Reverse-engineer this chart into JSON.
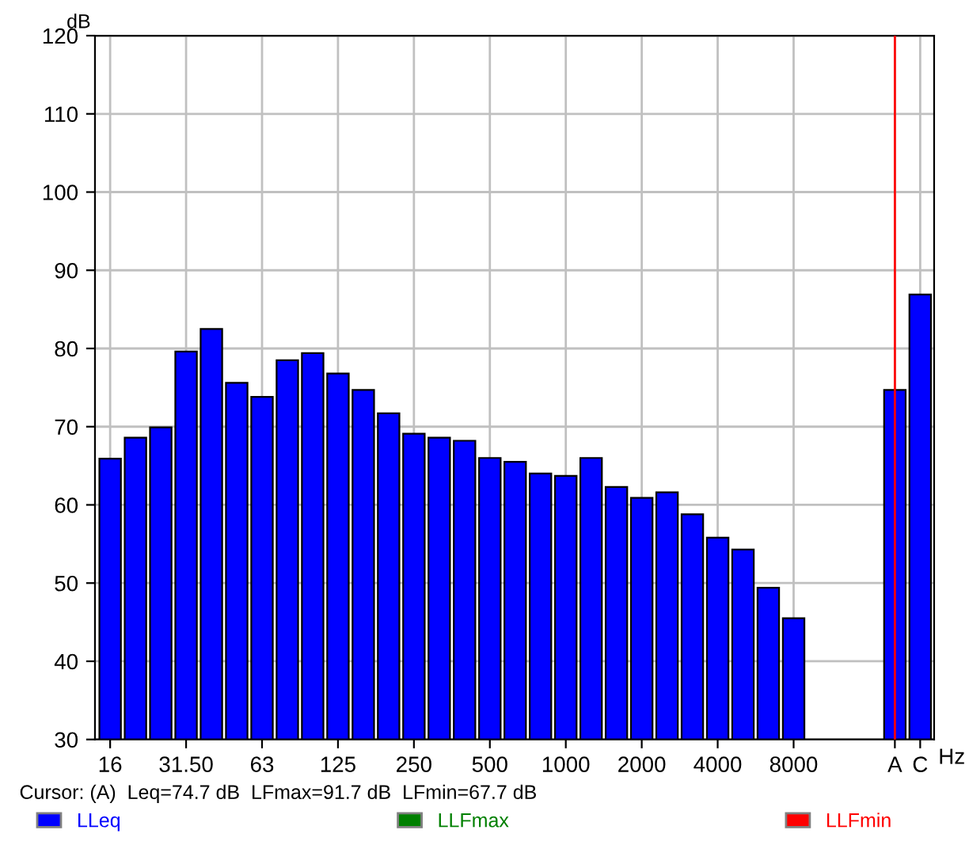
{
  "chart_data": {
    "type": "bar",
    "categories": [
      "16",
      null,
      null,
      "31.50",
      null,
      null,
      "63",
      null,
      null,
      "125",
      null,
      null,
      "250",
      null,
      null,
      "500",
      null,
      null,
      "1000",
      null,
      null,
      "2000",
      null,
      null,
      "4000",
      null,
      null,
      "8000",
      null,
      null,
      null,
      "A",
      "C"
    ],
    "series": [
      {
        "name": "LLeq",
        "color": "#0000ff",
        "values": [
          65.9,
          68.6,
          69.9,
          79.6,
          82.5,
          75.6,
          73.8,
          78.5,
          79.4,
          76.8,
          74.7,
          71.7,
          69.1,
          68.6,
          68.2,
          66.0,
          65.5,
          64.0,
          63.7,
          66.0,
          62.3,
          60.9,
          61.6,
          58.8,
          55.8,
          54.3,
          49.4,
          45.5,
          null,
          null,
          null,
          74.7,
          86.9
        ]
      },
      {
        "name": "LLFmax",
        "color": "#008000",
        "values": [
          null,
          null,
          null,
          null,
          null,
          null,
          null,
          null,
          null,
          null,
          null,
          null,
          null,
          null,
          null,
          null,
          null,
          null,
          null,
          null,
          null,
          null,
          null,
          null,
          null,
          null,
          null,
          null,
          null,
          null,
          null,
          null,
          null
        ]
      },
      {
        "name": "LLFmin",
        "color": "#ff0000",
        "values": [
          null,
          null,
          null,
          null,
          null,
          null,
          null,
          null,
          null,
          null,
          null,
          null,
          null,
          null,
          null,
          null,
          null,
          null,
          null,
          null,
          null,
          null,
          null,
          null,
          null,
          null,
          null,
          null,
          null,
          null,
          null,
          null,
          null
        ]
      }
    ],
    "xlabel": "Hz",
    "ylabel": "dB",
    "ylim": [
      30,
      120
    ],
    "yticks": [
      30,
      40,
      50,
      60,
      70,
      80,
      90,
      100,
      110,
      120
    ],
    "grid": true,
    "legend": "bottom",
    "ref_lines": [
      {
        "axis": "x",
        "value": "A",
        "color": "#ff0000"
      }
    ],
    "annotations": [
      "Cursor: (A)  Leq=74.7 dB  LFmax=91.7 dB  LFmin=67.7 dB"
    ]
  }
}
